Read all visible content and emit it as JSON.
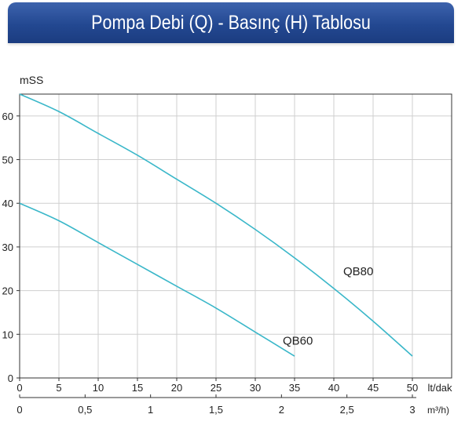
{
  "header": {
    "title": "Pompa Debi (Q) - Basınç (H) Tablosu"
  },
  "colors": {
    "banner": "#234891",
    "curve": "#3ab7c9",
    "grid": "#cfcfcf",
    "axis": "#333333"
  },
  "chart_data": {
    "type": "line",
    "title": "Pompa Debi (Q) - Basınç (H) Tablosu",
    "ylabel": "mSS",
    "xlabel": "lt/dak",
    "x2label": "m³/h)",
    "ylim": [
      0,
      65
    ],
    "xlim": [
      0,
      55
    ],
    "grid": true,
    "y_ticks": [
      0,
      10,
      20,
      30,
      40,
      50,
      60
    ],
    "x_ticks": [
      0,
      5,
      10,
      15,
      20,
      25,
      30,
      35,
      40,
      45,
      50
    ],
    "x2_ticks": [
      "0",
      "0,5",
      "1",
      "1,5",
      "2",
      "2,5",
      "3"
    ],
    "x2_values": [
      0,
      0.5,
      1,
      1.5,
      2,
      2.5,
      3
    ],
    "series": [
      {
        "name": "QB80",
        "x": [
          0,
          5,
          10,
          15,
          20,
          25,
          30,
          35,
          40,
          45,
          50
        ],
        "y": [
          65,
          61,
          56,
          51,
          45.5,
          40,
          34,
          27.5,
          20.5,
          13,
          5
        ]
      },
      {
        "name": "QB60",
        "x": [
          0,
          5,
          10,
          15,
          20,
          25,
          30,
          35
        ],
        "y": [
          40,
          36,
          31,
          26,
          21,
          16,
          10.5,
          5
        ]
      }
    ]
  }
}
